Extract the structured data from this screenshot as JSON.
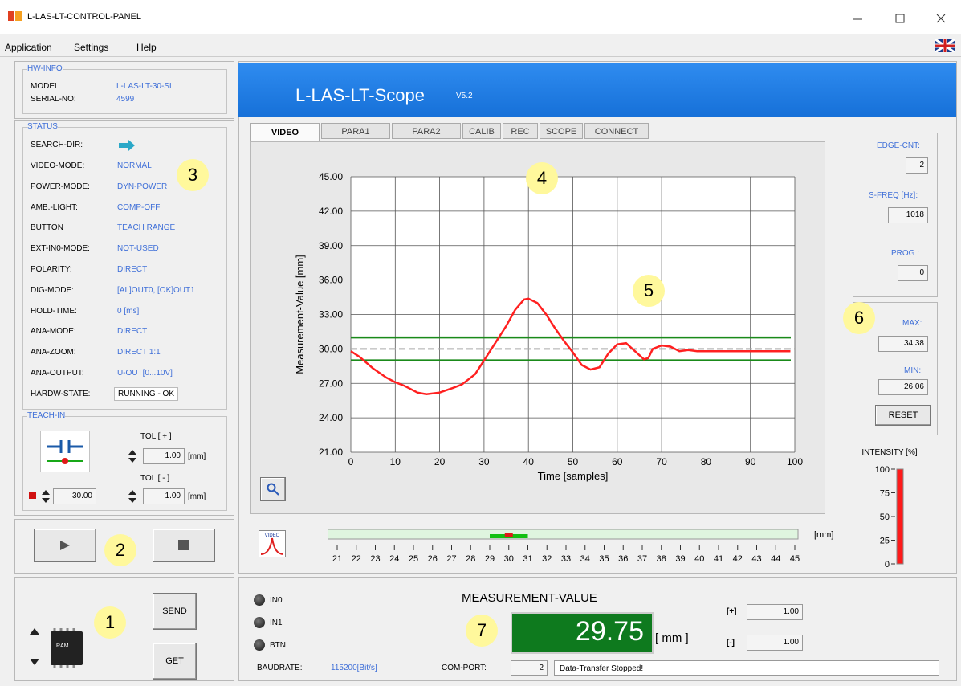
{
  "window": {
    "title": "L-LAS-LT-CONTROL-PANEL"
  },
  "menu": [
    "Application",
    "Settings",
    "Help"
  ],
  "hw_info": {
    "title": "HW-INFO",
    "rows": [
      [
        "MODEL",
        "L-LAS-LT-30-SL"
      ],
      [
        "SERIAL-NO:",
        "4599"
      ]
    ]
  },
  "status": {
    "title": "STATUS",
    "search_dir": "SEARCH-DIR:",
    "rows": [
      [
        "VIDEO-MODE:",
        "NORMAL"
      ],
      [
        "POWER-MODE:",
        "DYN-POWER"
      ],
      [
        "AMB.-LIGHT:",
        "COMP-OFF"
      ],
      [
        "BUTTON",
        "TEACH RANGE"
      ],
      [
        "EXT-IN0-MODE:",
        "NOT-USED"
      ],
      [
        "POLARITY:",
        "DIRECT"
      ],
      [
        "DIG-MODE:",
        "[AL]OUT0, [OK]OUT1"
      ],
      [
        "HOLD-TIME:",
        "0 [ms]"
      ],
      [
        "ANA-MODE:",
        "DIRECT"
      ],
      [
        "ANA-ZOOM:",
        "DIRECT 1:1"
      ],
      [
        "ANA-OUTPUT:",
        "U-OUT[0...10V]"
      ],
      [
        "HARDW-STATE:",
        "RUNNING - OK"
      ]
    ]
  },
  "teach_in": {
    "title": "TEACH-IN",
    "tol_plus_label": "TOL [ + ]",
    "tol_plus": "1.00",
    "unit": "[mm]",
    "tol_minus_label": "TOL [ - ]",
    "tol_minus": "1.00",
    "teach_value": "30.00"
  },
  "memory": {
    "chip": "RAM",
    "send": "SEND",
    "get": "GET"
  },
  "callouts": [
    "1",
    "2",
    "3",
    "4",
    "5",
    "6",
    "7"
  ],
  "scope": {
    "header": "L-LAS-LT-Scope",
    "version": "V5.2",
    "tabs": [
      "VIDEO",
      "PARA1",
      "PARA2",
      "CALIB",
      "REC",
      "SCOPE",
      "CONNECT"
    ],
    "y_label": "Measurement-Value [mm]",
    "x_label": "Time [samples]",
    "xlim": [
      0,
      100
    ],
    "ylim": [
      21,
      45
    ],
    "xticks": [
      0,
      10,
      20,
      30,
      40,
      50,
      60,
      70,
      80,
      90,
      100
    ],
    "yticks": [
      {
        "value": 21,
        "label": "21.00"
      },
      {
        "value": 24,
        "label": "24.00"
      },
      {
        "value": 27,
        "label": "27.00"
      },
      {
        "value": 30,
        "label": "30.00"
      },
      {
        "value": 33,
        "label": "33.00"
      },
      {
        "value": 36,
        "label": "36.00"
      },
      {
        "value": 39,
        "label": "39.00"
      },
      {
        "value": 42,
        "label": "42.00"
      },
      {
        "value": 45,
        "label": "45.00"
      }
    ],
    "curve": {
      "color": "#ff2020",
      "x": [
        0,
        2,
        5,
        8,
        10,
        12,
        15,
        17,
        20,
        23,
        25,
        28,
        30,
        33,
        35,
        37,
        39,
        40,
        42,
        44,
        46,
        48,
        50,
        52,
        54,
        56,
        58,
        60,
        62,
        64,
        66,
        67,
        68,
        70,
        72,
        74,
        76,
        78,
        80,
        90,
        99
      ],
      "values": [
        29.8,
        29.3,
        28.3,
        27.5,
        27.1,
        26.8,
        26.2,
        26.06,
        26.2,
        26.6,
        26.9,
        27.8,
        29.0,
        30.8,
        32.0,
        33.4,
        34.3,
        34.38,
        34.0,
        33.0,
        31.8,
        30.7,
        29.7,
        28.6,
        28.2,
        28.4,
        29.6,
        30.4,
        30.5,
        29.8,
        29.1,
        29.2,
        30.0,
        30.3,
        30.2,
        29.8,
        29.9,
        29.8,
        29.8,
        29.8,
        29.8
      ]
    },
    "tol_lines": {
      "color": "#1a8a1a",
      "values": [
        31,
        29
      ]
    },
    "center_line": 30
  },
  "side": {
    "edge_cnt_label": "EDGE-CNT:",
    "edge_cnt": 2,
    "sfreq_label": "S-FREQ [Hz]:",
    "sfreq": 1018,
    "prog_label": "PROG :",
    "prog": 0,
    "max_label": "MAX:",
    "max": 34.38,
    "min_label": "MIN:",
    "min": 26.06,
    "reset": "RESET"
  },
  "intensity": {
    "label": "INTENSITY [%]",
    "ylim": [
      0,
      100
    ],
    "yticks": [
      0,
      25,
      50,
      75,
      100
    ],
    "value": 100,
    "color": "#ff1a1a"
  },
  "scale": {
    "icon": "VIDEO",
    "xlim": [
      21,
      45
    ],
    "xticks": [
      21,
      22,
      23,
      24,
      25,
      26,
      27,
      28,
      29,
      30,
      31,
      32,
      33,
      34,
      35,
      36,
      37,
      38,
      39,
      40,
      41,
      42,
      43,
      44,
      45
    ],
    "unit": "[mm]",
    "tol_range": [
      29,
      31
    ],
    "marker": 30
  },
  "measurement": {
    "title": "MEASUREMENT-VALUE",
    "value": 29.75,
    "unit": "[ mm ]",
    "plus_label": "[+]",
    "plus": "1.00",
    "minus_label": "[-]",
    "minus": "1.00"
  },
  "io": {
    "leds": [
      "IN0",
      "IN1",
      "BTN"
    ],
    "baud_label": "BAUDRATE:",
    "baud": "115200[Bit/s]",
    "com_label": "COM-PORT:",
    "com": 2,
    "message": "Data-Transfer Stopped!"
  }
}
